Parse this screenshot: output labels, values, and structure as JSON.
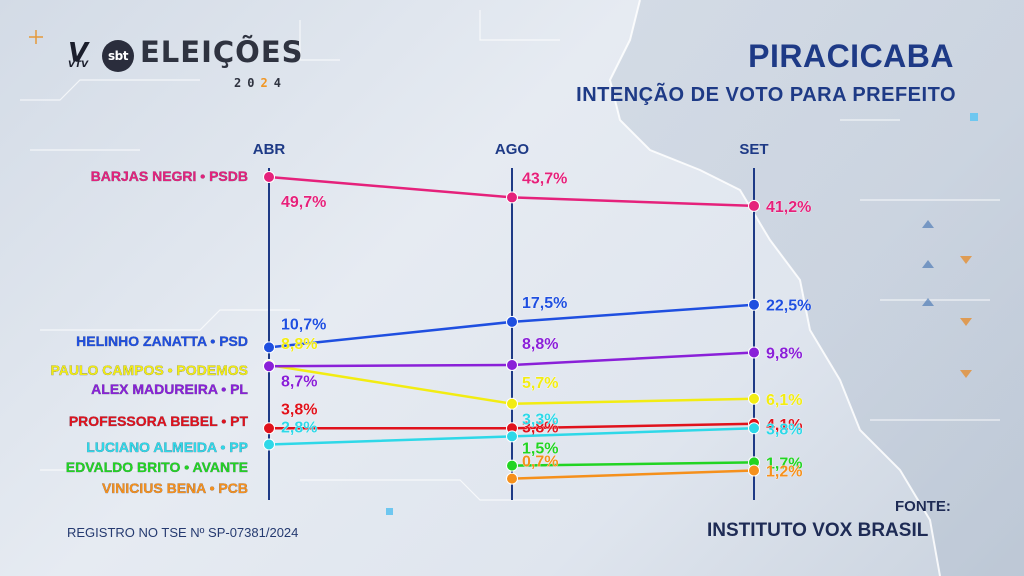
{
  "broadcast": {
    "vtv_label": "V",
    "vtv_small": "VTV",
    "sbt_label": "sbt",
    "elections_label": "ELEIÇÕES",
    "year_digits": [
      "2",
      "0",
      "2",
      "4"
    ]
  },
  "header": {
    "city": "PIRACICABA",
    "subtitle": "INTENÇÃO DE VOTO PARA PREFEITO"
  },
  "footer": {
    "registro": "REGISTRO NO TSE Nº SP-07381/2024",
    "fonte_label": "FONTE:",
    "fonte_name": "INSTITUTO VOX BRASIL"
  },
  "colors": {
    "axis": "#1e3a86",
    "title": "#1e3a86",
    "background": "#dfe5ee"
  },
  "chart_data": {
    "type": "line",
    "title": "PIRACICABA",
    "subtitle": "INTENÇÃO DE VOTO PARA PREFEITO",
    "categories": [
      "ABR",
      "AGO",
      "SET"
    ],
    "ylabel": "",
    "ylim": [
      0,
      50
    ],
    "grid": false,
    "legend": "left",
    "series": [
      {
        "name": "BARJAS NEGRI • PSDB",
        "color": "#e5217b",
        "values": [
          49.7,
          43.7,
          41.2
        ],
        "labels": [
          "49,7%",
          "43,7%",
          "41,2%"
        ]
      },
      {
        "name": "HELINHO ZANATTA • PSD",
        "color": "#1f4fe0",
        "values": [
          10.7,
          17.5,
          22.5
        ],
        "labels": [
          "10,7%",
          "17,5%",
          "22,5%"
        ]
      },
      {
        "name": "PAULO CAMPOS • PODEMOS",
        "color": "#f2ec12",
        "values": [
          8.8,
          5.7,
          6.1
        ],
        "labels": [
          "8,8%",
          "5,7%",
          "6,1%"
        ]
      },
      {
        "name": "ALEX MADUREIRA • PL",
        "color": "#8a20d8",
        "values": [
          8.7,
          8.8,
          9.8
        ],
        "labels": [
          "8,7%",
          "8,8%",
          "9,8%"
        ]
      },
      {
        "name": "PROFESSORA BEBEL • PT",
        "color": "#e0121c",
        "values": [
          3.8,
          3.8,
          4.1
        ],
        "labels": [
          "3,8%",
          "3,8%",
          "4,1%"
        ]
      },
      {
        "name": "LUCIANO ALMEIDA • PP",
        "color": "#2ed8e8",
        "values": [
          2.8,
          3.3,
          3.8
        ],
        "labels": [
          "2,8%",
          "3,3%",
          "3,8%"
        ]
      },
      {
        "name": "EDVALDO BRITO • AVANTE",
        "color": "#22d422",
        "values": [
          null,
          1.5,
          1.7
        ],
        "labels": [
          "",
          "1,5%",
          "1,7%"
        ]
      },
      {
        "name": "VINICIUS BENA • PCB",
        "color": "#f5901c",
        "values": [
          null,
          0.7,
          1.2
        ],
        "labels": [
          "",
          "0,7%",
          "1,2%"
        ]
      }
    ]
  }
}
